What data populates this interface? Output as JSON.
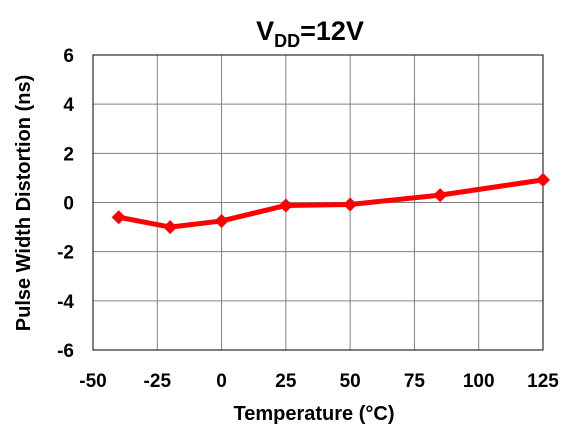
{
  "chart_data": {
    "type": "line",
    "title": {
      "main": "V",
      "sub": "DD",
      "rest": "=12V"
    },
    "xlabel": "Temperature (°C)",
    "ylabel": "Pulse Width Distortion (ns)",
    "xlim": [
      -50,
      125
    ],
    "ylim": [
      -6,
      6
    ],
    "xticks": [
      -50,
      -25,
      0,
      25,
      50,
      75,
      100,
      125
    ],
    "yticks": [
      -6,
      -4,
      -2,
      0,
      2,
      4,
      6
    ],
    "xtick_labels": [
      "-50",
      "-25",
      "0",
      "25",
      "50",
      "75",
      "100",
      "125"
    ],
    "ytick_labels": [
      "-6",
      "-4",
      "-2",
      "0",
      "2",
      "4",
      "6"
    ],
    "grid": true,
    "series": [
      {
        "color": "#ff0000",
        "marker": "diamond",
        "x": [
          -40,
          -20,
          0,
          25,
          50,
          85,
          125
        ],
        "y": [
          -0.6,
          -1.0,
          -0.75,
          -0.12,
          -0.08,
          0.3,
          0.92
        ]
      }
    ]
  }
}
